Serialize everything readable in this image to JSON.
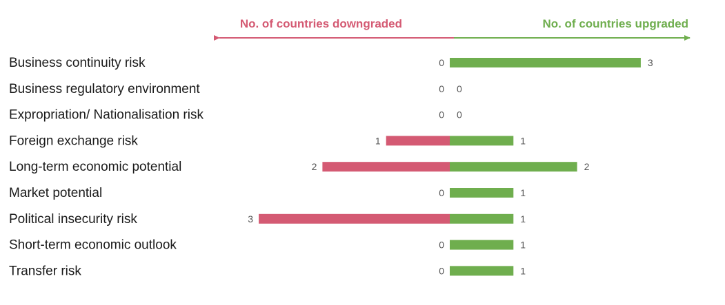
{
  "colors": {
    "downgraded": "#d45a73",
    "upgraded": "#6fae4e",
    "label_text": "#1a1a1a",
    "value_text": "#555555"
  },
  "chart_data": {
    "type": "bar",
    "orientation": "horizontal-diverging",
    "header_left": "No. of countries downgraded",
    "header_right": "No. of countries upgraded",
    "categories": [
      "Business continuity risk",
      "Business regulatory environment",
      "Expropriation/ Nationalisation risk",
      "Foreign exchange risk",
      "Long-term economic potential",
      "Market potential",
      "Political insecurity risk",
      "Short-term economic outlook",
      "Transfer risk"
    ],
    "series": [
      {
        "name": "No. of countries downgraded",
        "values": [
          0,
          0,
          0,
          1,
          2,
          0,
          3,
          0,
          0
        ]
      },
      {
        "name": "No. of countries upgraded",
        "values": [
          3,
          0,
          0,
          1,
          2,
          1,
          1,
          1,
          1
        ]
      }
    ],
    "xlim": [
      -3,
      3
    ],
    "grid": false,
    "legend": "top"
  }
}
